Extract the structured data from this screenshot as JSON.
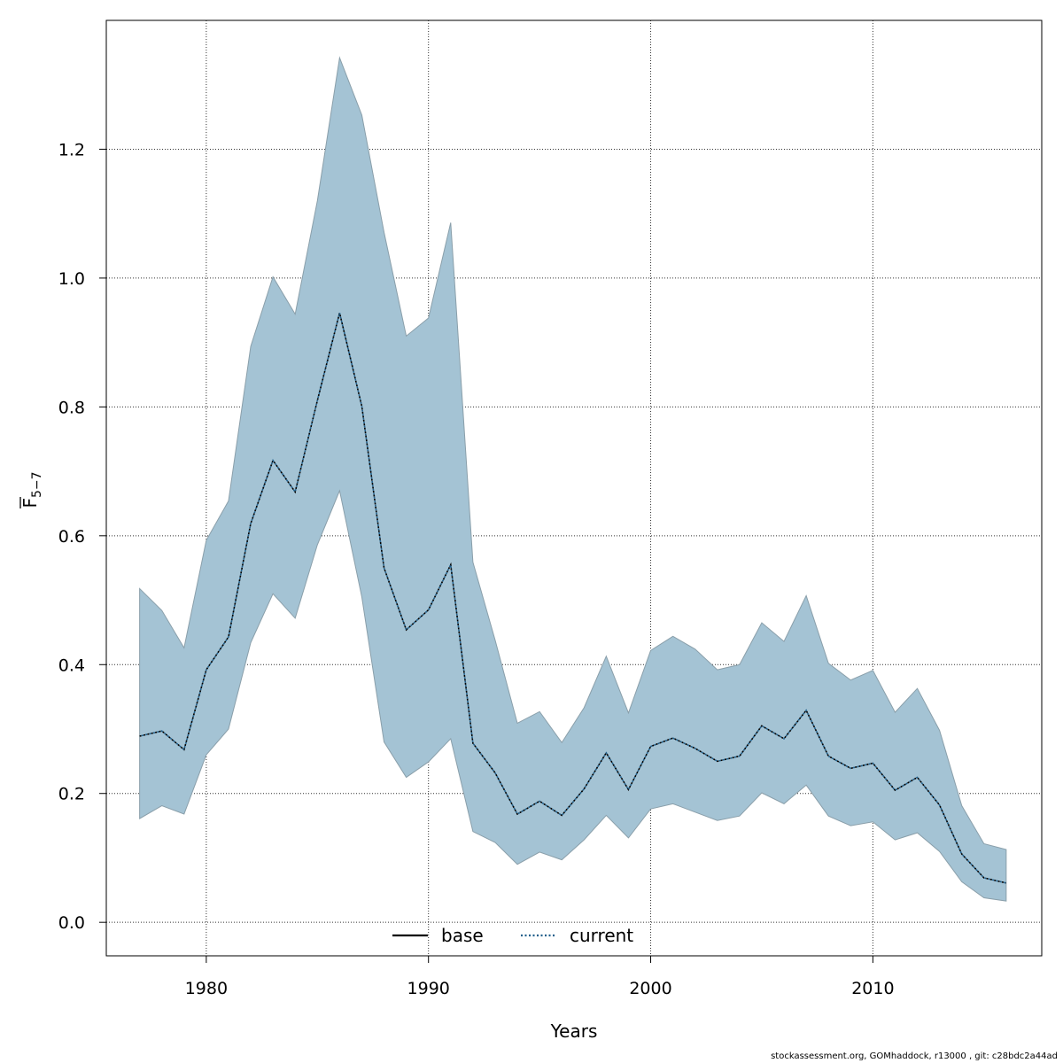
{
  "chart_data": {
    "type": "area",
    "xlabel": "Years",
    "ylabel": {
      "main": "F",
      "subscript": "5−7",
      "overline": true
    },
    "xlim": [
      1975.5,
      2017.6
    ],
    "ylim": [
      -0.052,
      1.4
    ],
    "x_ticks": [
      1980,
      1990,
      2000,
      2010
    ],
    "y_ticks": [
      0.0,
      0.2,
      0.4,
      0.6,
      0.8,
      1.0,
      1.2
    ],
    "y_tick_labels": [
      "0.0",
      "0.2",
      "0.4",
      "0.6",
      "0.8",
      "1.0",
      "1.2"
    ],
    "grid": true,
    "legend": {
      "position": "bottom-center",
      "entries": [
        {
          "name": "base",
          "style": "solid",
          "color": "#000000"
        },
        {
          "name": "current",
          "style": "dotted",
          "color": "#1f5f8b"
        }
      ]
    },
    "x": [
      1977,
      1978,
      1979,
      1980,
      1981,
      1982,
      1983,
      1984,
      1985,
      1986,
      1987,
      1988,
      1989,
      1990,
      1991,
      1992,
      1993,
      1994,
      1995,
      1996,
      1997,
      1998,
      1999,
      2000,
      2001,
      2002,
      2003,
      2004,
      2005,
      2006,
      2007,
      2008,
      2009,
      2010,
      2011,
      2012,
      2013,
      2014,
      2015,
      2016
    ],
    "series": [
      {
        "name": "base",
        "values": [
          0.289,
          0.297,
          0.268,
          0.392,
          0.443,
          0.619,
          0.717,
          0.668,
          0.81,
          0.946,
          0.801,
          0.55,
          0.454,
          0.485,
          0.555,
          0.278,
          0.232,
          0.168,
          0.188,
          0.166,
          0.207,
          0.263,
          0.206,
          0.273,
          0.286,
          0.27,
          0.25,
          0.258,
          0.305,
          0.285,
          0.329,
          0.258,
          0.239,
          0.247,
          0.205,
          0.225,
          0.182,
          0.106,
          0.069,
          0.061
        ]
      },
      {
        "name": "current",
        "values": [
          0.289,
          0.297,
          0.268,
          0.392,
          0.443,
          0.619,
          0.717,
          0.668,
          0.81,
          0.946,
          0.801,
          0.55,
          0.454,
          0.485,
          0.555,
          0.278,
          0.232,
          0.168,
          0.188,
          0.166,
          0.207,
          0.263,
          0.206,
          0.273,
          0.286,
          0.27,
          0.25,
          0.258,
          0.305,
          0.285,
          0.329,
          0.258,
          0.239,
          0.247,
          0.205,
          0.225,
          0.182,
          0.106,
          0.069,
          0.061
        ]
      }
    ],
    "band": {
      "lower": [
        0.161,
        0.181,
        0.168,
        0.26,
        0.3,
        0.434,
        0.51,
        0.472,
        0.586,
        0.67,
        0.505,
        0.28,
        0.225,
        0.249,
        0.285,
        0.141,
        0.124,
        0.09,
        0.109,
        0.097,
        0.128,
        0.166,
        0.131,
        0.176,
        0.184,
        0.171,
        0.158,
        0.165,
        0.201,
        0.184,
        0.213,
        0.165,
        0.15,
        0.156,
        0.128,
        0.139,
        0.11,
        0.063,
        0.038,
        0.033
      ],
      "upper": [
        0.518,
        0.484,
        0.426,
        0.593,
        0.654,
        0.894,
        1.002,
        0.944,
        1.12,
        1.342,
        1.253,
        1.071,
        0.91,
        0.938,
        1.086,
        0.559,
        0.438,
        0.309,
        0.327,
        0.279,
        0.333,
        0.413,
        0.325,
        0.422,
        0.444,
        0.424,
        0.392,
        0.4,
        0.465,
        0.436,
        0.507,
        0.402,
        0.376,
        0.391,
        0.326,
        0.363,
        0.298,
        0.181,
        0.122,
        0.113
      ]
    },
    "colors": {
      "band_fill": "#a4c3d4",
      "band_stroke": "#8a9faa",
      "grid": "#333333",
      "current_line": "#1f5f8b",
      "base_line": "#000000"
    }
  },
  "footer": "stockassessment.org, GOMhaddock, r13000 , git: c28bdc2a44ad"
}
